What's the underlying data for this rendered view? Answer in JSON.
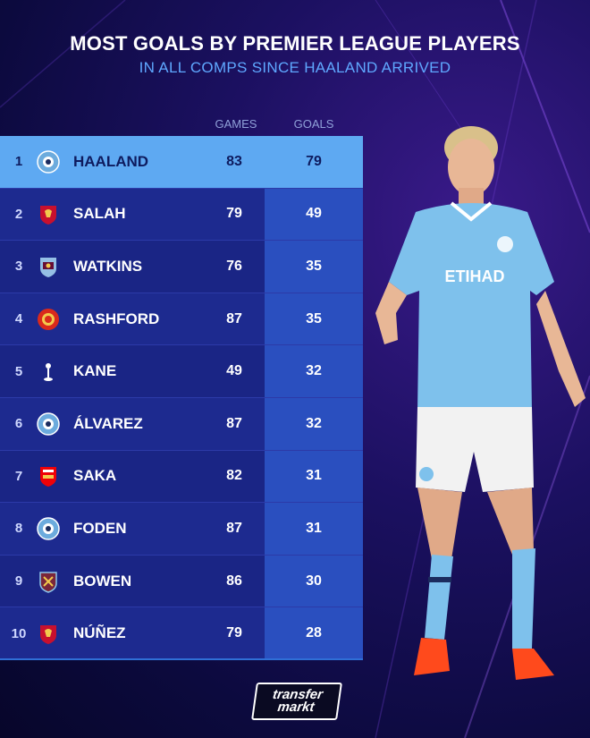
{
  "header": {
    "title": "MOST GOALS BY PREMIER LEAGUE PLAYERS",
    "subtitle": "IN ALL COMPS SINCE HAALAND ARRIVED"
  },
  "columns": {
    "games": "GAMES",
    "goals": "GOALS"
  },
  "rows": [
    {
      "rank": "1",
      "name": "HAALAND",
      "games": "83",
      "goals": "79",
      "club": "man-city"
    },
    {
      "rank": "2",
      "name": "SALAH",
      "games": "79",
      "goals": "49",
      "club": "liverpool"
    },
    {
      "rank": "3",
      "name": "WATKINS",
      "games": "76",
      "goals": "35",
      "club": "aston-villa"
    },
    {
      "rank": "4",
      "name": "RASHFORD",
      "games": "87",
      "goals": "35",
      "club": "man-united"
    },
    {
      "rank": "5",
      "name": "KANE",
      "games": "49",
      "goals": "32",
      "club": "tottenham"
    },
    {
      "rank": "6",
      "name": "ÁLVAREZ",
      "games": "87",
      "goals": "32",
      "club": "man-city"
    },
    {
      "rank": "7",
      "name": "SAKA",
      "games": "82",
      "goals": "31",
      "club": "arsenal"
    },
    {
      "rank": "8",
      "name": "FODEN",
      "games": "87",
      "goals": "31",
      "club": "man-city"
    },
    {
      "rank": "9",
      "name": "BOWEN",
      "games": "86",
      "goals": "30",
      "club": "west-ham"
    },
    {
      "rank": "10",
      "name": "NÚÑEZ",
      "games": "79",
      "goals": "28",
      "club": "liverpool"
    }
  ],
  "logo": {
    "line1": "transfer",
    "line2": "markt"
  },
  "colors": {
    "background": "#0c0a3e",
    "subtitle": "#5fa8ff",
    "highlight_row": "#5ea9f2",
    "row": "#1d2a8f",
    "goal_cell": "#2a4fbf",
    "man_city": "#6cabdd",
    "liverpool": "#c8102e",
    "aston_villa": "#95bfe5",
    "man_united": "#da291c",
    "arsenal": "#ef0107",
    "west_ham": "#7a263a"
  }
}
